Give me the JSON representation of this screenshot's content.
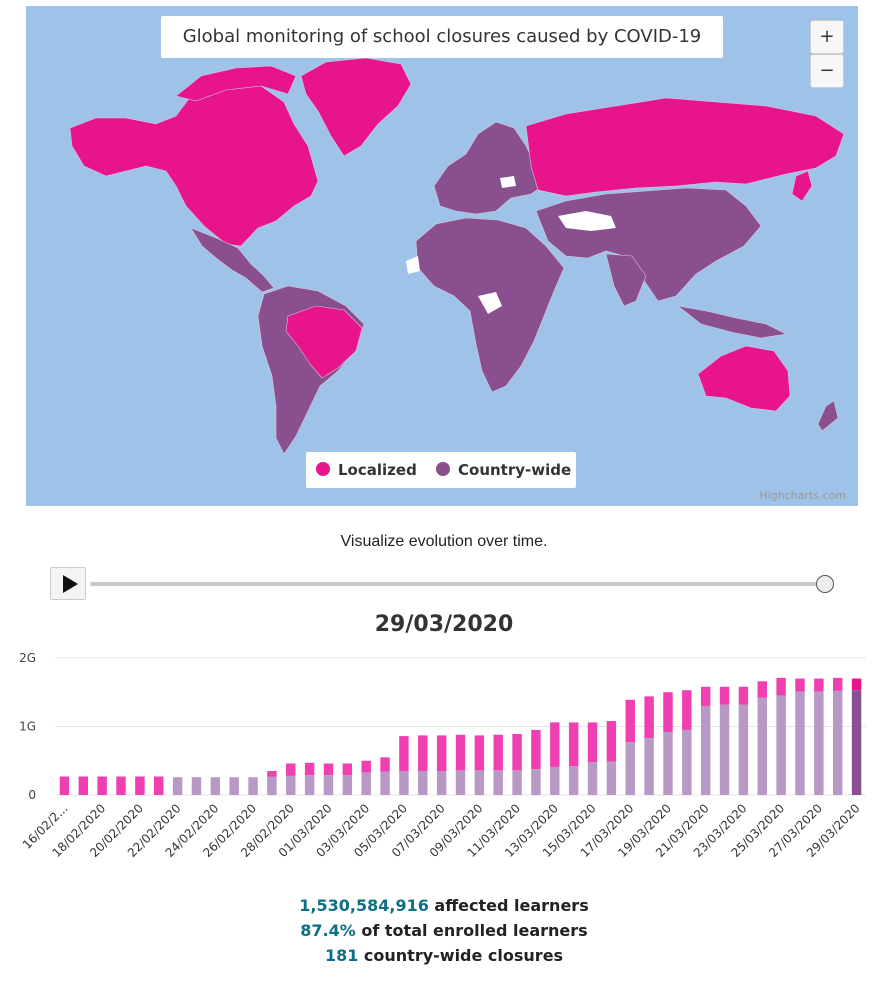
{
  "map": {
    "title": "Global monitoring of school closures caused by COVID-19",
    "zoom_in_label": "+",
    "zoom_out_label": "−",
    "credit": "Highcharts.com",
    "legend": [
      {
        "label": "Localized",
        "color": "#e8148c"
      },
      {
        "label": "Country-wide",
        "color": "#8a4f8e"
      }
    ],
    "colors": {
      "ocean": "#9fc2e8",
      "border": "#d6c7dc",
      "no_data": "#ffffff"
    }
  },
  "controls": {
    "subtitle": "Visualize evolution over time.",
    "play_icon": "play-icon",
    "current_date": "29/03/2020",
    "slider_position": 1.0
  },
  "chart_data": {
    "type": "bar",
    "stacked": true,
    "categories": [
      "16/02/2020",
      "17/02/2020",
      "18/02/2020",
      "19/02/2020",
      "20/02/2020",
      "21/02/2020",
      "22/02/2020",
      "23/02/2020",
      "24/02/2020",
      "25/02/2020",
      "26/02/2020",
      "27/02/2020",
      "28/02/2020",
      "29/02/2020",
      "01/03/2020",
      "02/03/2020",
      "03/03/2020",
      "04/03/2020",
      "05/03/2020",
      "06/03/2020",
      "07/03/2020",
      "08/03/2020",
      "09/03/2020",
      "10/03/2020",
      "11/03/2020",
      "12/03/2020",
      "13/03/2020",
      "14/03/2020",
      "15/03/2020",
      "16/03/2020",
      "17/03/2020",
      "18/03/2020",
      "19/03/2020",
      "20/03/2020",
      "21/03/2020",
      "22/03/2020",
      "23/03/2020",
      "24/03/2020",
      "25/03/2020",
      "26/03/2020",
      "27/03/2020",
      "28/03/2020",
      "29/03/2020"
    ],
    "x_tick_labels": [
      "16/02/2...",
      "18/02/2020",
      "20/02/2020",
      "22/02/2020",
      "24/02/2020",
      "26/02/2020",
      "28/02/2020",
      "01/03/2020",
      "03/03/2020",
      "05/03/2020",
      "07/03/2020",
      "09/03/2020",
      "11/03/2020",
      "13/03/2020",
      "15/03/2020",
      "17/03/2020",
      "19/03/2020",
      "21/03/2020",
      "23/03/2020",
      "25/03/2020",
      "27/03/2020",
      "29/03/2020"
    ],
    "series": [
      {
        "name": "Country-wide",
        "color": "#b898c4",
        "highlight_color": "#8a4f8e",
        "values": [
          0,
          0,
          0,
          0,
          0,
          0,
          0.26,
          0.26,
          0.26,
          0.26,
          0.26,
          0.27,
          0.28,
          0.29,
          0.29,
          0.29,
          0.33,
          0.34,
          0.35,
          0.35,
          0.35,
          0.36,
          0.36,
          0.36,
          0.36,
          0.38,
          0.41,
          0.42,
          0.48,
          0.49,
          0.77,
          0.83,
          0.92,
          0.95,
          1.3,
          1.32,
          1.32,
          1.42,
          1.45,
          1.51,
          1.51,
          1.52,
          1.53
        ]
      },
      {
        "name": "Localized",
        "color": "#f03fb1",
        "highlight_color": "#e8148c",
        "values": [
          0.27,
          0.27,
          0.27,
          0.27,
          0.27,
          0.27,
          0,
          0,
          0,
          0,
          0,
          0.08,
          0.18,
          0.18,
          0.17,
          0.17,
          0.17,
          0.21,
          0.51,
          0.52,
          0.52,
          0.52,
          0.51,
          0.52,
          0.53,
          0.57,
          0.65,
          0.64,
          0.58,
          0.59,
          0.62,
          0.61,
          0.58,
          0.58,
          0.28,
          0.26,
          0.26,
          0.24,
          0.26,
          0.19,
          0.19,
          0.19,
          0.17
        ]
      }
    ],
    "y_ticks": [
      "0",
      "1G",
      "2G"
    ],
    "ylim": [
      0,
      2000000000
    ],
    "y_unit": 1000000000,
    "grid": true,
    "highlighted_index": 42
  },
  "stats": {
    "learners_value": "1,530,584,916",
    "learners_label": " affected learners",
    "percent_value": "87.4%",
    "percent_label": " of total enrolled learners",
    "closures_value": "181",
    "closures_label": " country-wide closures"
  }
}
